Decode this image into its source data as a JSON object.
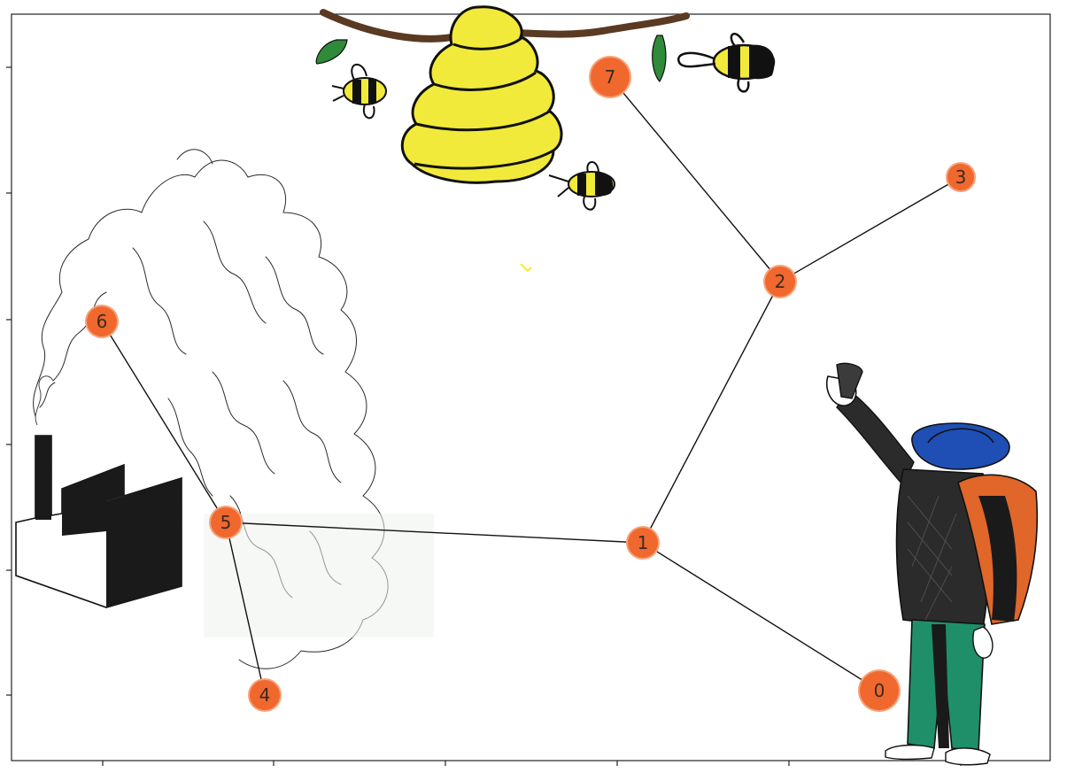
{
  "graph": {
    "nodes": [
      {
        "id": 0,
        "label": "0"
      },
      {
        "id": 1,
        "label": "1"
      },
      {
        "id": 2,
        "label": "2"
      },
      {
        "id": 3,
        "label": "3"
      },
      {
        "id": 4,
        "label": "4"
      },
      {
        "id": 5,
        "label": "5"
      },
      {
        "id": 6,
        "label": "6"
      },
      {
        "id": 7,
        "label": "7"
      }
    ],
    "edges": [
      {
        "from": 0,
        "to": 1
      },
      {
        "from": 1,
        "to": 2
      },
      {
        "from": 2,
        "to": 3
      },
      {
        "from": 2,
        "to": 7
      },
      {
        "from": 1,
        "to": 5
      },
      {
        "from": 5,
        "to": 4
      },
      {
        "from": 5,
        "to": 6
      }
    ]
  },
  "illustration": {
    "elements": [
      "beehive-icon",
      "bee-icon",
      "factory-icon",
      "smoke-cloud-icon",
      "person-with-backpack-icon"
    ]
  },
  "colors": {
    "node_fill": "#f0682e",
    "node_glow": "#f7a27a",
    "edge": "#111111",
    "hive": "#f2ea3a",
    "branch": "#5a3a22",
    "leaf": "#2f8a3a",
    "hat": "#1f4fb5",
    "backpack": "#e0662a",
    "pants": "#1f8f6a",
    "coat": "#2b2b2b"
  }
}
